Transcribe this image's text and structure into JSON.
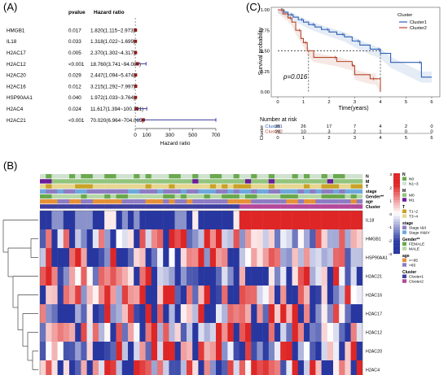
{
  "panel_labels": {
    "a": "(A)",
    "b": "(B)",
    "c": "(C)"
  },
  "forest": {
    "col_pvalue": "pvalue",
    "col_hr": "Hazard ratio",
    "xlabel": "Hazard ratio",
    "ticks": [
      "0",
      "100",
      "300",
      "500",
      "700"
    ]
  },
  "km": {
    "ylabel": "Survival probability",
    "xlabel": "Time(years)",
    "pvalue_text": "p=0.016",
    "legend_title": "Cluster",
    "yticks": [
      "1.00",
      "0.75",
      "0.50",
      "0.25",
      "0.00"
    ],
    "xticks": [
      "0",
      "1",
      "2",
      "3",
      "4",
      "5",
      "6"
    ],
    "risk_title": "Number at risk",
    "risk_ylabel": "Cluster",
    "risk_rows": [
      {
        "name": "Cluster1",
        "values": [
          "35",
          "26",
          "17",
          "7",
          "4",
          "2",
          "0"
        ]
      },
      {
        "name": "Cluster2",
        "values": [
          "20",
          "10",
          "3",
          "2",
          "1",
          "0",
          "0"
        ]
      }
    ]
  },
  "heatmap": {
    "legend_scale": [
      "3",
      "2",
      "1",
      "0",
      "-1",
      "-2",
      "-3"
    ],
    "annotation_tracks": [
      "N",
      "M",
      "T",
      "stage",
      "Gender**",
      "age",
      "Cluster"
    ],
    "legend": [
      {
        "title": "N",
        "items": [
          {
            "label": "N0",
            "color": "#6aa84f"
          },
          {
            "label": "N1~3",
            "color": "#cfe2cf"
          }
        ]
      },
      {
        "title": "M",
        "items": [
          {
            "label": "M0",
            "color": "#93c47d"
          },
          {
            "label": "M1",
            "color": "#6a1b9a"
          }
        ]
      },
      {
        "title": "T",
        "items": [
          {
            "label": "T1~2",
            "color": "#c9a227"
          },
          {
            "label": "T3~4",
            "color": "#e6d690"
          }
        ]
      },
      {
        "title": "stage",
        "items": [
          {
            "label": "Stage I&II",
            "color": "#8e7cc3"
          },
          {
            "label": "Stage III&IV",
            "color": "#6fa8dc"
          }
        ]
      },
      {
        "title": "Gender**",
        "items": [
          {
            "label": "FEMALE",
            "color": "#6aa84f"
          },
          {
            "label": "MALE",
            "color": "#b6d7a8"
          }
        ]
      },
      {
        "title": "age",
        "items": [
          {
            "label": "<=65",
            "color": "#e69138"
          },
          {
            "label": ">65",
            "color": "#8e7cc3"
          }
        ]
      },
      {
        "title": "Cluster",
        "items": [
          {
            "label": "Cluster1",
            "color": "#3d3d9e"
          },
          {
            "label": "Cluster2",
            "color": "#b4479a"
          }
        ]
      }
    ]
  },
  "chart_data": [
    {
      "type": "forest",
      "title": "",
      "xlabel": "Hazard ratio",
      "xlim": [
        0,
        700
      ],
      "rows": [
        {
          "gene": "HMGB1",
          "pvalue": "0.017",
          "hr_text": "1.820(1.115~2.973)",
          "hr": 1.82,
          "lo": 1.115,
          "hi": 2.973
        },
        {
          "gene": "IL18",
          "pvalue": "0.033",
          "hr_text": "1.318(1.022~1.699)",
          "hr": 1.318,
          "lo": 1.022,
          "hi": 1.699
        },
        {
          "gene": "H2AC17",
          "pvalue": "0.005",
          "hr_text": "2.370(1.302~4.317)",
          "hr": 2.37,
          "lo": 1.302,
          "hi": 4.317
        },
        {
          "gene": "H2AC12",
          "pvalue": "<0.001",
          "hr_text": "18.760(3.741~94.087)",
          "hr": 18.76,
          "lo": 3.741,
          "hi": 94.087
        },
        {
          "gene": "H2AC20",
          "pvalue": "0.029",
          "hr_text": "2.447(1.094~5.474)",
          "hr": 2.447,
          "lo": 1.094,
          "hi": 5.474
        },
        {
          "gene": "H2AC16",
          "pvalue": "0.012",
          "hr_text": "3.215(1.292~7.997)",
          "hr": 3.215,
          "lo": 1.292,
          "hi": 7.997
        },
        {
          "gene": "HSP90AA1",
          "pvalue": "0.040",
          "hr_text": "1.972(1.033~3.764)",
          "hr": 1.972,
          "lo": 1.033,
          "hi": 3.764
        },
        {
          "gene": "H2AC4",
          "pvalue": "0.024",
          "hr_text": "11.617(1.394~100.191)",
          "hr": 11.617,
          "lo": 1.394,
          "hi": 100.191
        },
        {
          "gene": "H2AC21",
          "pvalue": "<0.001",
          "hr_text": "70.020(6.964~704.065)",
          "hr": 70.02,
          "lo": 6.964,
          "hi": 704.065
        }
      ]
    },
    {
      "type": "line",
      "title": "",
      "xlabel": "Time(years)",
      "ylabel": "Survival probability",
      "xlim": [
        0,
        6
      ],
      "ylim": [
        0,
        1
      ],
      "median_lines": [
        {
          "series": "Cluster1",
          "x": 4.0
        },
        {
          "series": "Cluster2",
          "x": 1.2
        }
      ],
      "series": [
        {
          "name": "Cluster1",
          "color": "#2b5fb4",
          "x": [
            0,
            0.25,
            0.4,
            0.6,
            0.8,
            1.0,
            1.2,
            1.45,
            1.7,
            2.0,
            2.3,
            2.6,
            2.9,
            3.2,
            3.6,
            4.0,
            4.4,
            5.6,
            6.0
          ],
          "y": [
            1.0,
            0.97,
            0.94,
            0.91,
            0.88,
            0.85,
            0.82,
            0.79,
            0.76,
            0.73,
            0.7,
            0.67,
            0.62,
            0.57,
            0.52,
            0.47,
            0.36,
            0.18,
            0.18
          ]
        },
        {
          "name": "Cluster2",
          "color": "#b5462b",
          "x": [
            0,
            0.2,
            0.4,
            0.55,
            0.7,
            0.9,
            1.0,
            1.15,
            1.4,
            2.3,
            2.9,
            3.0,
            3.6,
            3.8,
            4.0
          ],
          "y": [
            1.0,
            0.95,
            0.9,
            0.85,
            0.75,
            0.65,
            0.6,
            0.5,
            0.42,
            0.37,
            0.32,
            0.21,
            0.16,
            0.16,
            0.0
          ]
        }
      ]
    },
    {
      "type": "heatmap",
      "title": "",
      "rows": [
        "IL18",
        "HMGB1",
        "HSP90AA1",
        "H2AC21",
        "H2AC16",
        "H2AC17",
        "H2AC12",
        "H2AC20",
        "H2AC4"
      ],
      "n_columns": 55,
      "range": [
        -3,
        3
      ]
    }
  ]
}
